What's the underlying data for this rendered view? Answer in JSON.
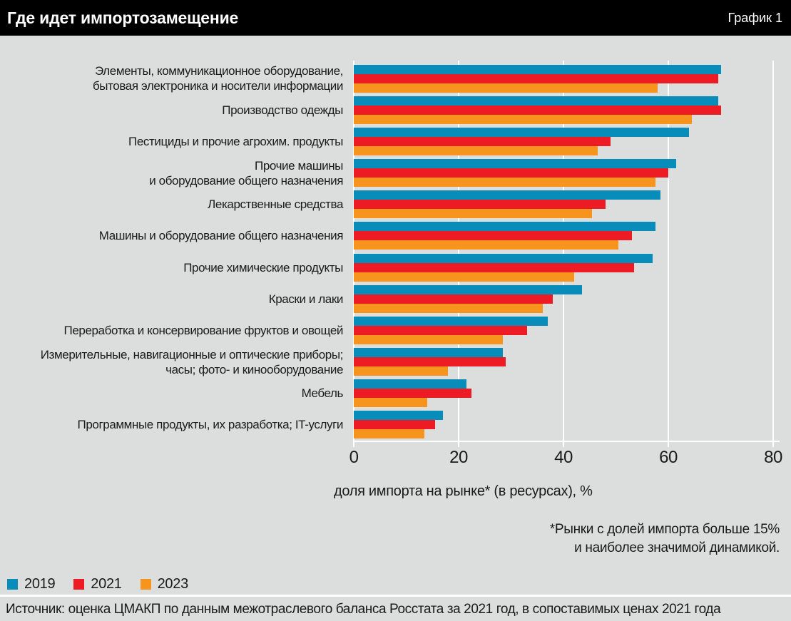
{
  "header": {
    "title": "Где идет импортозамещение",
    "tag": "График 1"
  },
  "chart_data": {
    "type": "bar",
    "orientation": "horizontal",
    "title": "Где идет импортозамещение",
    "xlabel": "доля импорта на рынке* (в ресурсах), %",
    "xlim": [
      0,
      80
    ],
    "xticks": [
      0,
      20,
      40,
      60,
      80
    ],
    "grid": "vertical-white-lines",
    "legend_position": "bottom-left",
    "categories": [
      "Элементы, коммуникационное оборудование,\nбытовая электроника и носители информации",
      "Производство одежды",
      "Пестициды и прочие агрохим. продукты",
      "Прочие машины\nи оборудование общего назначения",
      "Лекарственные средства",
      "Машины и оборудование общего назначения",
      "Прочие химические продукты",
      "Краски и лаки",
      "Переработка и консервирование фруктов и овощей",
      "Измерительные, навигационные и оптические приборы;\nчасы; фото- и кинооборудование",
      "Мебель",
      "Программные продукты, их разработка; IT-услуги"
    ],
    "series": [
      {
        "name": "2019",
        "color": "#088cb9",
        "values": [
          70,
          69.5,
          64,
          61.5,
          58.5,
          57.5,
          57,
          43.5,
          37,
          28.5,
          21.5,
          17
        ]
      },
      {
        "name": "2021",
        "color": "#ed1c24",
        "values": [
          69.5,
          70,
          49,
          60,
          48,
          53,
          53.5,
          38,
          33,
          29,
          22.5,
          15.5
        ]
      },
      {
        "name": "2023",
        "color": "#f7941d",
        "values": [
          58,
          64.5,
          46.5,
          57.5,
          45.5,
          50.5,
          42,
          36,
          28.5,
          18,
          14,
          13.5
        ]
      }
    ]
  },
  "footnote": {
    "line1": "*Рынки с долей импорта больше 15%",
    "line2": "и наиболее значимой динамикой."
  },
  "source": "Источник: оценка ЦМАКП по данным межотраслевого баланса Росстата за 2021 год, в сопоставимых ценах 2021 года"
}
